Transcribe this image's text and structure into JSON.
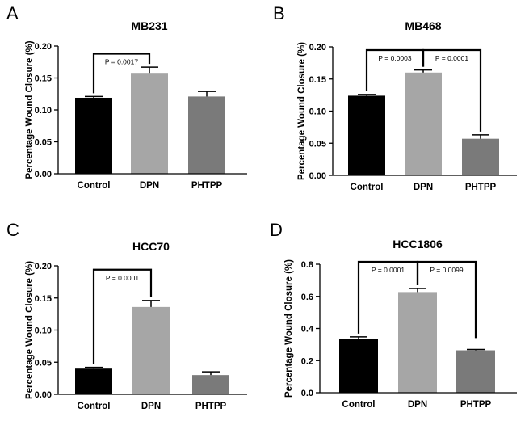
{
  "chart_data": [
    {
      "panel": "A",
      "type": "bar",
      "title": "MB231",
      "ylabel": "Percentage  Wound Closure (%)",
      "xlabel": "",
      "categories": [
        "Control",
        "DPN",
        "PHTPP"
      ],
      "values": [
        0.119,
        0.158,
        0.121
      ],
      "errors": [
        0.002,
        0.009,
        0.008
      ],
      "colors": [
        "#000000",
        "#a6a6a6",
        "#7a7a7a"
      ],
      "ylim": [
        0,
        0.2
      ],
      "yticks": [
        0,
        0.05,
        0.1,
        0.15,
        0.2
      ],
      "ytick_labels": [
        "0.00",
        "0.05",
        "0.10",
        "0.15",
        "0.20"
      ],
      "significance": [
        {
          "from": 0,
          "to": 1,
          "y": 0.188,
          "label": "P = 0.0017"
        }
      ]
    },
    {
      "panel": "B",
      "type": "bar",
      "title": "MB468",
      "ylabel": "Percentage  Wound Closure (%)",
      "xlabel": "",
      "categories": [
        "Control",
        "DPN",
        "PHTPP"
      ],
      "values": [
        0.124,
        0.16,
        0.057
      ],
      "errors": [
        0.002,
        0.004,
        0.006
      ],
      "colors": [
        "#000000",
        "#a6a6a6",
        "#7a7a7a"
      ],
      "ylim": [
        0,
        0.2
      ],
      "yticks": [
        0,
        0.05,
        0.1,
        0.15,
        0.2
      ],
      "ytick_labels": [
        "0.00",
        "0.05",
        "0.10",
        "0.15",
        "0.20"
      ],
      "significance": [
        {
          "from": 0,
          "to": 1,
          "y": 0.195,
          "label": "P = 0.0003"
        },
        {
          "from": 1,
          "to": 2,
          "y": 0.195,
          "label": "P = 0.0001"
        }
      ]
    },
    {
      "panel": "C",
      "type": "bar",
      "title": "HCC70",
      "ylabel": "Percentage  Wound Closure (%)",
      "xlabel": "",
      "categories": [
        "Control",
        "DPN",
        "PHTPP"
      ],
      "values": [
        0.04,
        0.136,
        0.03
      ],
      "errors": [
        0.002,
        0.01,
        0.005
      ],
      "colors": [
        "#000000",
        "#a6a6a6",
        "#7a7a7a"
      ],
      "ylim": [
        0,
        0.2
      ],
      "yticks": [
        0,
        0.05,
        0.1,
        0.15,
        0.2
      ],
      "ytick_labels": [
        "0.00",
        "0.05",
        "0.10",
        "0.15",
        "0.20"
      ],
      "significance": [
        {
          "from": 0,
          "to": 1,
          "y": 0.194,
          "label": "P = 0.0001"
        }
      ]
    },
    {
      "panel": "D",
      "type": "bar",
      "title": "HCC1806",
      "ylabel": "Percentage  Wound Closure (%)",
      "xlabel": "",
      "categories": [
        "Control",
        "DPN",
        "PHTPP"
      ],
      "values": [
        0.333,
        0.627,
        0.264
      ],
      "errors": [
        0.015,
        0.022,
        0.005
      ],
      "colors": [
        "#000000",
        "#a6a6a6",
        "#7a7a7a"
      ],
      "ylim": [
        0,
        0.8
      ],
      "yticks": [
        0,
        0.2,
        0.4,
        0.6,
        0.8
      ],
      "ytick_labels": [
        "0.0",
        "0.2",
        "0.4",
        "0.6",
        "0.8"
      ],
      "significance": [
        {
          "from": 0,
          "to": 1,
          "y": 0.815,
          "label": "P = 0.0001"
        },
        {
          "from": 1,
          "to": 2,
          "y": 0.815,
          "label": "P = 0.0099",
          "drop_to": 0.34
        }
      ]
    }
  ]
}
